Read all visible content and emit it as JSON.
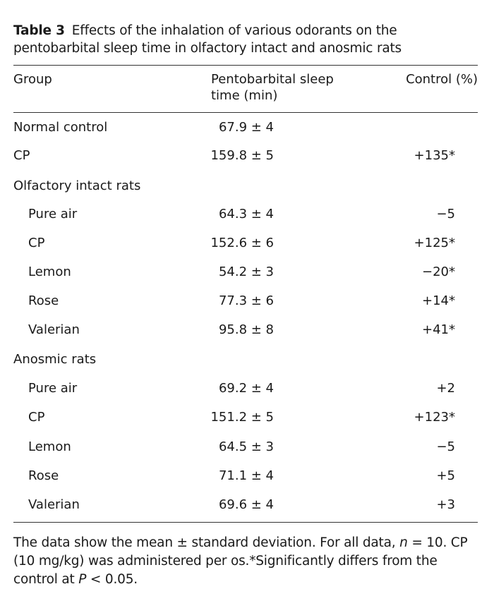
{
  "caption": {
    "label": "Table 3",
    "text": "Effects of the inhalation of various odorants on the pentobarbital sleep time in olfactory intact and anosmic rats"
  },
  "headers": {
    "group": "Group",
    "sleep_line1": "Pentobarbital sleep",
    "sleep_line2": "time (min)",
    "control": "Control (%)"
  },
  "rows": [
    {
      "group": "Normal control",
      "sleep": "67.9 ± 4",
      "control": ""
    },
    {
      "group": "CP",
      "sleep": "159.8 ± 5",
      "control": "+135*"
    },
    {
      "group": "Olfactory intact rats",
      "sleep": "",
      "control": ""
    },
    {
      "group": "Pure air",
      "sleep": "64.3 ± 4",
      "control": "−5"
    },
    {
      "group": "CP",
      "sleep": "152.6 ± 6",
      "control": "+125*"
    },
    {
      "group": "Lemon",
      "sleep": "54.2 ± 3",
      "control": "−20*"
    },
    {
      "group": "Rose",
      "sleep": "77.3 ± 6",
      "control": "+14*"
    },
    {
      "group": "Valerian",
      "sleep": "95.8 ± 8",
      "control": "+41*"
    },
    {
      "group": "Anosmic rats",
      "sleep": "",
      "control": ""
    },
    {
      "group": "Pure air",
      "sleep": "69.2 ± 4",
      "control": "+2"
    },
    {
      "group": "CP",
      "sleep": "151.2 ± 5",
      "control": "+123*"
    },
    {
      "group": "Lemon",
      "sleep": "64.5 ± 3",
      "control": "−5"
    },
    {
      "group": "Rose",
      "sleep": "71.1 ± 4",
      "control": "+5"
    },
    {
      "group": "Valerian",
      "sleep": "69.6 ± 4",
      "control": "+3"
    }
  ],
  "footnote": {
    "part1": "The data show the mean ± standard deviation. For all data, ",
    "n_var": "n",
    "part2": " = 10. CP (10 mg/kg) was administered per os.*Significantly differs from the control at ",
    "p_var": "P",
    "part3": " < 0.05."
  }
}
